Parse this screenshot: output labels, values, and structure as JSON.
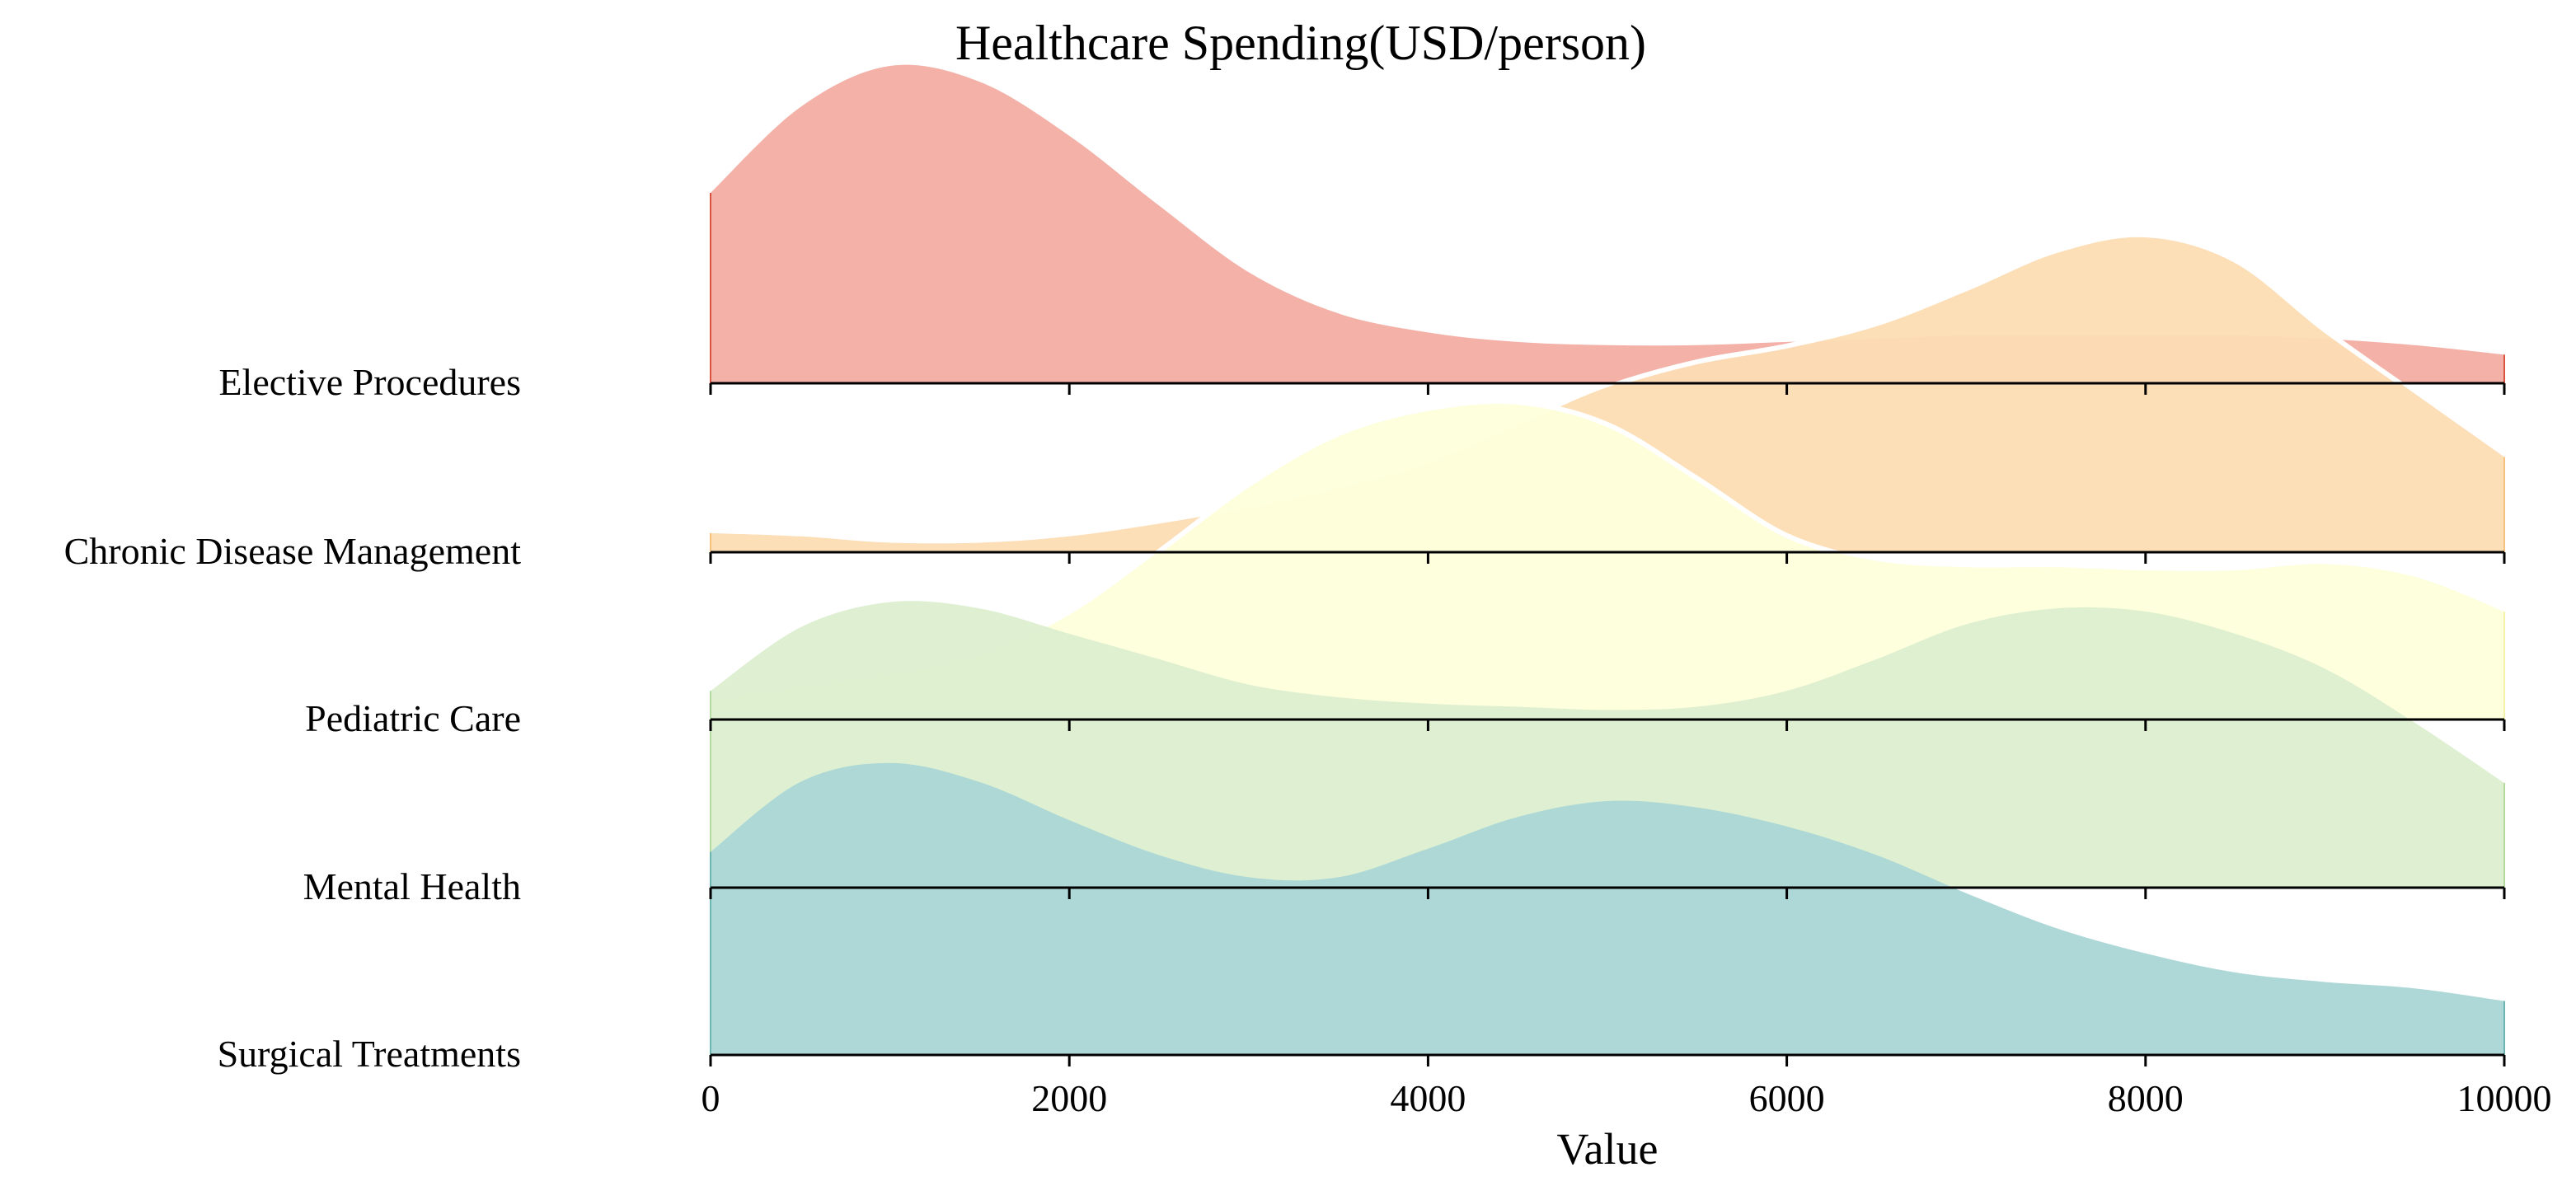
{
  "chart_data": {
    "type": "ridgeline",
    "title": "Healthcare Spending(USD/person)",
    "xlabel": "Value",
    "ylabel": "",
    "xlim": [
      0,
      10000
    ],
    "x_ticks": [
      0,
      2000,
      4000,
      6000,
      8000,
      10000
    ],
    "x_tick_labels": [
      "0",
      "2000",
      "4000",
      "6000",
      "8000",
      "10000"
    ],
    "grid": false,
    "x": [
      0,
      500,
      1000,
      1500,
      2000,
      2500,
      3000,
      3500,
      4000,
      4500,
      5000,
      5500,
      6000,
      6500,
      7000,
      7500,
      8000,
      8500,
      9000,
      9500,
      10000
    ],
    "series": [
      {
        "name": "Elective Procedures",
        "color": "#f2ada3",
        "edge_color": "#d9533f",
        "values": [
          0.6,
          0.87,
          1.0,
          0.95,
          0.78,
          0.56,
          0.35,
          0.22,
          0.16,
          0.13,
          0.12,
          0.12,
          0.13,
          0.14,
          0.15,
          0.15,
          0.15,
          0.15,
          0.14,
          0.12,
          0.09
        ]
      },
      {
        "name": "Chronic Disease Management",
        "color": "#fcdcb3",
        "edge_color": "#f6c27e",
        "values": [
          0.06,
          0.05,
          0.03,
          0.03,
          0.05,
          0.09,
          0.14,
          0.2,
          0.28,
          0.4,
          0.52,
          0.6,
          0.65,
          0.72,
          0.83,
          0.95,
          1.0,
          0.92,
          0.7,
          0.5,
          0.3
        ]
      },
      {
        "name": "Pediatric Care",
        "color": "#feffdb",
        "edge_color": "#f2f2a8",
        "values": [
          0.06,
          0.1,
          0.14,
          0.2,
          0.33,
          0.53,
          0.74,
          0.9,
          0.98,
          1.0,
          0.93,
          0.76,
          0.58,
          0.5,
          0.48,
          0.48,
          0.47,
          0.47,
          0.49,
          0.45,
          0.34
        ]
      },
      {
        "name": "Mental Health",
        "color": "#dcefcf",
        "edge_color": "#b3dba0",
        "values": [
          0.62,
          0.82,
          0.9,
          0.88,
          0.8,
          0.72,
          0.64,
          0.6,
          0.58,
          0.57,
          0.56,
          0.57,
          0.62,
          0.72,
          0.83,
          0.88,
          0.87,
          0.8,
          0.69,
          0.52,
          0.33
        ]
      },
      {
        "name": "Surgical Treatments",
        "color": "#aad6d6",
        "edge_color": "#6bb5b3",
        "values": [
          0.64,
          0.86,
          0.92,
          0.86,
          0.74,
          0.63,
          0.56,
          0.56,
          0.65,
          0.75,
          0.8,
          0.78,
          0.72,
          0.63,
          0.51,
          0.4,
          0.32,
          0.26,
          0.23,
          0.21,
          0.17
        ]
      }
    ],
    "highlight_curves": [
      {
        "name": "Chronic Disease Management",
        "color": "#ffffff",
        "values": [
          0.06,
          0.05,
          0.03,
          0.03,
          0.05,
          0.09,
          0.14,
          0.2,
          0.28,
          0.4,
          0.52,
          0.6,
          0.65,
          0.72,
          0.83,
          0.95,
          1.0,
          0.92,
          0.7,
          0.5,
          0.3
        ]
      },
      {
        "name": "Pediatric Care",
        "color": "#ffffff",
        "values": [
          0.06,
          0.1,
          0.14,
          0.2,
          0.33,
          0.53,
          0.74,
          0.9,
          0.98,
          1.0,
          0.93,
          0.76,
          0.58,
          0.5,
          0.48,
          0.48,
          0.47,
          0.47,
          0.49,
          0.45,
          0.34
        ]
      }
    ]
  }
}
